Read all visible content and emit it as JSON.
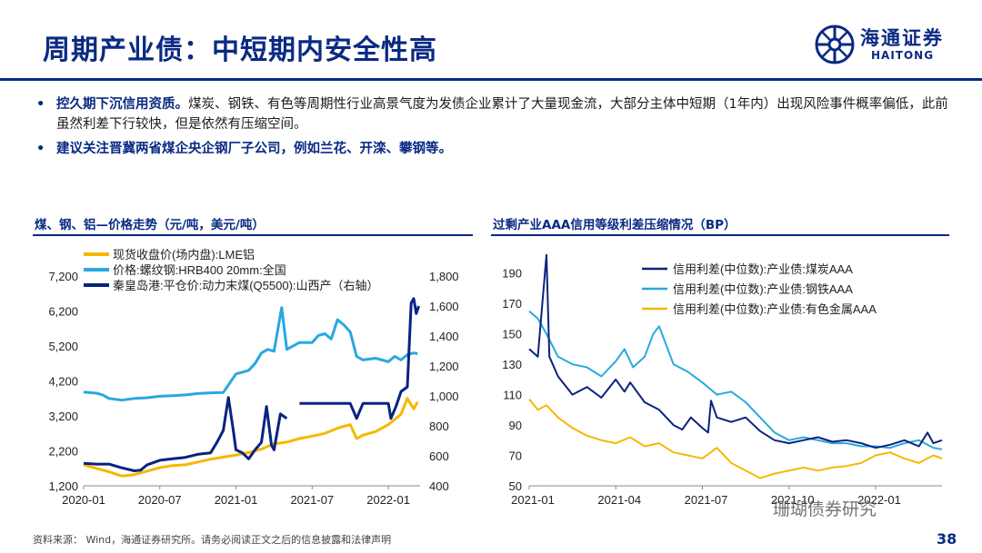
{
  "header": {
    "title": "周期产业债：中短期内安全性高",
    "logo_cn": "海通证券",
    "logo_en": "HAITONG"
  },
  "bullets": [
    {
      "bold": "控久期下沉信用资质。",
      "text": "煤炭、钢铁、有色等周期性行业高景气度为发债企业累计了大量现金流，大部分主体中短期（1年内）出现风险事件概率偏低，此前虽然利差下行较快，但是依然有压缩空间。"
    },
    {
      "bold": "建议关注晋冀两省煤企央企钢厂子公司，例如兰花、开滦、攀钢等。",
      "text": ""
    }
  ],
  "colors": {
    "navy": "#0a2a83",
    "sky": "#29a8e0",
    "gold": "#f5b800"
  },
  "chart_data": [
    {
      "type": "line",
      "title": "煤、钢、铝—价格走势（元/吨，美元/吨）",
      "legend": [
        "现货收盘价(场内盘):LME铝",
        "价格:螺纹钢:HRB400 20mm:全国",
        "秦皇岛港:平仓价:动力末煤(Q5500):山西产（右轴）"
      ],
      "x_ticks": [
        "2020-01",
        "2020-07",
        "2021-01",
        "2021-07",
        "2022-01"
      ],
      "y_left_ticks": [
        "1,200",
        "2,200",
        "3,200",
        "4,200",
        "5,200",
        "6,200",
        "7,200"
      ],
      "y_right_ticks": [
        "400",
        "600",
        "800",
        "1,000",
        "1,200",
        "1,400",
        "1,600",
        "1,800"
      ],
      "ylim_left": [
        1200,
        7200
      ],
      "ylim_right": [
        400,
        1800
      ],
      "xlim_months": [
        0,
        26.5
      ],
      "series": [
        {
          "name": "现货收盘价(场内盘):LME铝",
          "axis": "left",
          "color": "#f5b800",
          "points": [
            [
              0,
              1800
            ],
            [
              1,
              1700
            ],
            [
              2,
              1600
            ],
            [
              3,
              1480
            ],
            [
              4,
              1520
            ],
            [
              5,
              1620
            ],
            [
              6,
              1720
            ],
            [
              7,
              1780
            ],
            [
              8,
              1800
            ],
            [
              9,
              1880
            ],
            [
              10,
              1960
            ],
            [
              11,
              2020
            ],
            [
              12,
              2080
            ],
            [
              13,
              2150
            ],
            [
              14,
              2250
            ],
            [
              15,
              2400
            ],
            [
              16,
              2450
            ],
            [
              17,
              2550
            ],
            [
              18,
              2620
            ],
            [
              19,
              2700
            ],
            [
              20,
              2850
            ],
            [
              21,
              2950
            ],
            [
              21.5,
              2550
            ],
            [
              22,
              2650
            ],
            [
              23,
              2750
            ],
            [
              24,
              2950
            ],
            [
              25,
              3250
            ],
            [
              25.5,
              3700
            ],
            [
              26,
              3400
            ],
            [
              26.3,
              3600
            ]
          ]
        },
        {
          "name": "价格:螺纹钢:HRB400 20mm:全国",
          "axis": "left",
          "color": "#29a8e0",
          "points": [
            [
              0,
              3880
            ],
            [
              1,
              3850
            ],
            [
              1.5,
              3800
            ],
            [
              2,
              3700
            ],
            [
              3,
              3650
            ],
            [
              4,
              3700
            ],
            [
              5,
              3720
            ],
            [
              6,
              3760
            ],
            [
              7,
              3780
            ],
            [
              8,
              3800
            ],
            [
              9,
              3840
            ],
            [
              10,
              3860
            ],
            [
              11,
              3870
            ],
            [
              12,
              4400
            ],
            [
              13,
              4500
            ],
            [
              13.5,
              4700
            ],
            [
              14,
              5000
            ],
            [
              14.5,
              5100
            ],
            [
              15,
              5050
            ],
            [
              15.6,
              6300
            ],
            [
              16,
              5100
            ],
            [
              17,
              5300
            ],
            [
              18,
              5300
            ],
            [
              18.5,
              5500
            ],
            [
              19,
              5550
            ],
            [
              19.5,
              5400
            ],
            [
              20,
              5950
            ],
            [
              20.5,
              5800
            ],
            [
              21,
              5600
            ],
            [
              21.5,
              4900
            ],
            [
              22,
              4800
            ],
            [
              23,
              4850
            ],
            [
              24,
              4750
            ],
            [
              24.5,
              4900
            ],
            [
              25,
              4800
            ],
            [
              25.5,
              4950
            ],
            [
              26,
              5000
            ],
            [
              26.3,
              4980
            ]
          ]
        },
        {
          "name": "秦皇岛港:平仓价:动力末煤(Q5500):山西产（右轴）",
          "axis": "right",
          "color": "#0a2280",
          "segments": [
            [
              [
                0,
                550
              ],
              [
                1,
                545
              ],
              [
                2,
                545
              ],
              [
                3,
                520
              ],
              [
                4,
                500
              ],
              [
                4.5,
                505
              ],
              [
                5,
                540
              ],
              [
                6,
                570
              ],
              [
                7,
                580
              ],
              [
                8,
                590
              ],
              [
                9,
                610
              ],
              [
                10,
                620
              ],
              [
                10.5,
                690
              ],
              [
                11,
                770
              ],
              [
                11.4,
                990
              ],
              [
                11.8,
                760
              ],
              [
                12,
                640
              ],
              [
                12.5,
                620
              ],
              [
                13,
                580
              ],
              [
                13.5,
                640
              ],
              [
                14,
                690
              ],
              [
                14.4,
                930
              ],
              [
                14.8,
                670
              ],
              [
                15,
                640
              ],
              [
                15.5,
                880
              ],
              [
                16,
                850
              ]
            ],
            [
              [
                17,
                950
              ],
              [
                19,
                950
              ],
              [
                21,
                950
              ],
              [
                21.5,
                850
              ],
              [
                22,
                950
              ],
              [
                24,
                950
              ],
              [
                24.2,
                850
              ],
              [
                24.6,
                930
              ],
              [
                25,
                1030
              ],
              [
                25.5,
                1060
              ],
              [
                25.8,
                1620
              ],
              [
                26,
                1650
              ],
              [
                26.2,
                1550
              ],
              [
                26.4,
                1600
              ]
            ]
          ]
        }
      ]
    },
    {
      "type": "line",
      "title": "过剩产业AAA信用等级利差压缩情况（BP）",
      "legend": [
        "信用利差(中位数):产业债:煤炭AAA",
        "信用利差(中位数):产业债:钢铁AAA",
        "信用利差(中位数):产业债:有色金属AAA"
      ],
      "x_ticks": [
        "2021-01",
        "2021-04",
        "2021-07",
        "2021-10",
        "2022-01"
      ],
      "y_ticks": [
        "50",
        "70",
        "90",
        "110",
        "130",
        "150",
        "170",
        "190"
      ],
      "ylim": [
        50,
        200
      ],
      "xlim_months": [
        0,
        14.3
      ],
      "series": [
        {
          "name": "信用利差(中位数):产业债:煤炭AAA",
          "color": "#0a2280",
          "points": [
            [
              0,
              140
            ],
            [
              0.3,
              135
            ],
            [
              0.6,
              202
            ],
            [
              0.7,
              135
            ],
            [
              1,
              122
            ],
            [
              1.5,
              110
            ],
            [
              2,
              115
            ],
            [
              2.5,
              108
            ],
            [
              3,
              120
            ],
            [
              3.3,
              112
            ],
            [
              3.5,
              118
            ],
            [
              4,
              105
            ],
            [
              4.5,
              100
            ],
            [
              5,
              90
            ],
            [
              5.3,
              87
            ],
            [
              5.6,
              95
            ],
            [
              6,
              88
            ],
            [
              6.2,
              85
            ],
            [
              6.3,
              106
            ],
            [
              6.5,
              95
            ],
            [
              7,
              92
            ],
            [
              7.5,
              95
            ],
            [
              8,
              86
            ],
            [
              8.5,
              80
            ],
            [
              9,
              78
            ],
            [
              9.5,
              80
            ],
            [
              10,
              82
            ],
            [
              10.5,
              79
            ],
            [
              11,
              80
            ],
            [
              11.5,
              78
            ],
            [
              12,
              75
            ],
            [
              12.5,
              77
            ],
            [
              13,
              80
            ],
            [
              13.5,
              76
            ],
            [
              13.8,
              85
            ],
            [
              14,
              78
            ],
            [
              14.3,
              80
            ]
          ]
        },
        {
          "name": "信用利差(中位数):产业债:钢铁AAA",
          "color": "#29a8e0",
          "points": [
            [
              0,
              165
            ],
            [
              0.3,
              160
            ],
            [
              0.6,
              150
            ],
            [
              1,
              135
            ],
            [
              1.5,
              130
            ],
            [
              2,
              128
            ],
            [
              2.5,
              122
            ],
            [
              3,
              132
            ],
            [
              3.3,
              140
            ],
            [
              3.6,
              128
            ],
            [
              4,
              135
            ],
            [
              4.3,
              150
            ],
            [
              4.5,
              155
            ],
            [
              4.8,
              140
            ],
            [
              5,
              130
            ],
            [
              5.5,
              125
            ],
            [
              6,
              118
            ],
            [
              6.5,
              110
            ],
            [
              7,
              112
            ],
            [
              7.5,
              105
            ],
            [
              8,
              95
            ],
            [
              8.5,
              85
            ],
            [
              9,
              80
            ],
            [
              9.5,
              82
            ],
            [
              10,
              80
            ],
            [
              10.5,
              78
            ],
            [
              11,
              78
            ],
            [
              11.5,
              76
            ],
            [
              12,
              76
            ],
            [
              12.5,
              75
            ],
            [
              13,
              78
            ],
            [
              13.5,
              80
            ],
            [
              14,
              75
            ],
            [
              14.3,
              74
            ]
          ]
        },
        {
          "name": "信用利差(中位数):产业债:有色金属AAA",
          "color": "#f5b800",
          "points": [
            [
              0,
              107
            ],
            [
              0.3,
              100
            ],
            [
              0.6,
              103
            ],
            [
              1,
              95
            ],
            [
              1.5,
              88
            ],
            [
              2,
              83
            ],
            [
              2.5,
              80
            ],
            [
              3,
              78
            ],
            [
              3.5,
              82
            ],
            [
              4,
              76
            ],
            [
              4.5,
              78
            ],
            [
              5,
              72
            ],
            [
              5.5,
              70
            ],
            [
              6,
              68
            ],
            [
              6.5,
              75
            ],
            [
              7,
              65
            ],
            [
              7.5,
              60
            ],
            [
              8,
              55
            ],
            [
              8.5,
              58
            ],
            [
              9,
              60
            ],
            [
              9.5,
              62
            ],
            [
              10,
              60
            ],
            [
              10.5,
              62
            ],
            [
              11,
              63
            ],
            [
              11.5,
              65
            ],
            [
              12,
              70
            ],
            [
              12.5,
              72
            ],
            [
              13,
              68
            ],
            [
              13.5,
              65
            ],
            [
              14,
              70
            ],
            [
              14.3,
              68
            ]
          ]
        }
      ]
    }
  ],
  "charts_meta": {
    "left_title": "煤、钢、铝—价格走势（元/吨，美元/吨）",
    "right_title": "过剩产业AAA信用等级利差压缩情况（BP）"
  },
  "footer": {
    "source": "资料来源： Wind，海通证券研究所。请务必阅读正文之后的信息披露和法律声明",
    "page": "38",
    "watermark": "珊瑚债券研究"
  }
}
